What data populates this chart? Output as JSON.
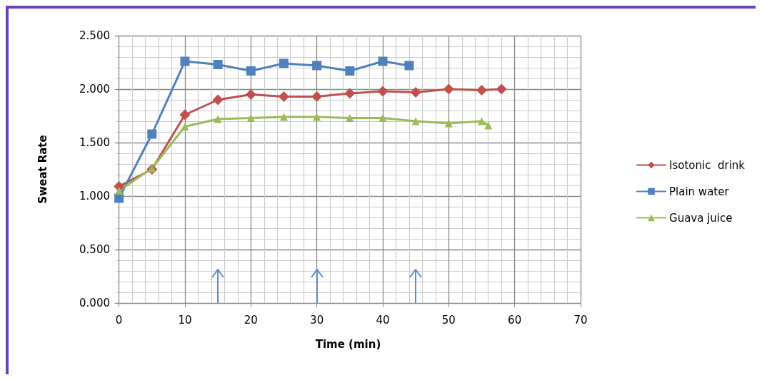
{
  "chart_data": {
    "type": "line",
    "xlabel": "Time (min)",
    "ylabel": "Sweat Rate",
    "xlim": [
      -0.5,
      70
    ],
    "xticks": [
      0,
      10,
      20,
      30,
      40,
      50,
      60,
      70
    ],
    "ylim": [
      0,
      2.5
    ],
    "yticks": [
      {
        "value": 0,
        "label": "0.000"
      },
      {
        "value": 0.5,
        "label": "0.500"
      },
      {
        "value": 1,
        "label": "1.000"
      },
      {
        "value": 1.5,
        "label": "1.500"
      },
      {
        "value": 2,
        "label": "2.000"
      },
      {
        "value": 2.5,
        "label": "2.500"
      }
    ],
    "grid": true,
    "legend": "right",
    "line_style": "solid",
    "series": [
      {
        "name": "Isotonic  drink",
        "color": "#c0504d",
        "marker": "diamond",
        "x": [
          0,
          5,
          10,
          15,
          20,
          25,
          30,
          35,
          40,
          45,
          50,
          55,
          58
        ],
        "values": [
          1.09,
          1.25,
          1.76,
          1.9,
          1.95,
          1.93,
          1.93,
          1.96,
          1.98,
          1.97,
          2.0,
          1.99,
          2.0
        ]
      },
      {
        "name": "Plain water",
        "color": "#4f81bd",
        "marker": "square",
        "x": [
          0,
          5,
          10,
          15,
          20,
          25,
          30,
          35,
          40,
          44
        ],
        "values": [
          0.98,
          1.58,
          2.26,
          2.23,
          2.17,
          2.24,
          2.22,
          2.17,
          2.26,
          2.22
        ]
      },
      {
        "name": "Guava juice",
        "color": "#9bbb59",
        "marker": "triangle",
        "x": [
          0,
          5,
          10,
          15,
          20,
          25,
          30,
          35,
          40,
          45,
          50,
          55,
          56
        ],
        "values": [
          1.05,
          1.26,
          1.65,
          1.72,
          1.73,
          1.74,
          1.74,
          1.73,
          1.73,
          1.7,
          1.68,
          1.7,
          1.66
        ]
      }
    ]
  }
}
